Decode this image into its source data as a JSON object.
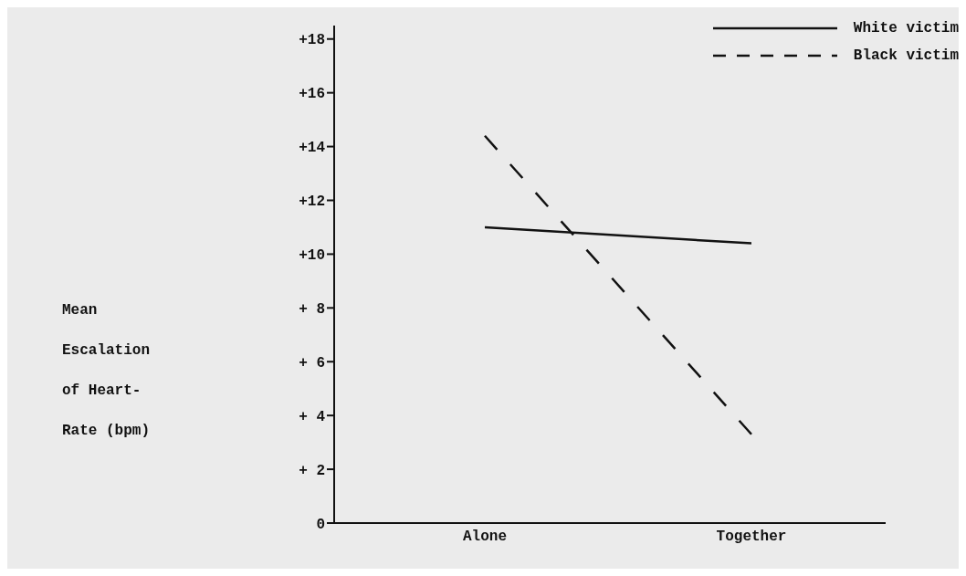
{
  "chart_data": {
    "type": "line",
    "ylabel": "Mean\nEscalation\nof Heart-\nRate (bpm)",
    "categories": [
      "Alone",
      "Together"
    ],
    "series": [
      {
        "name": "White victim",
        "color": "#111111",
        "values": [
          11.0,
          10.4
        ],
        "line_style": "solid"
      },
      {
        "name": "Black victim",
        "color": "#111111",
        "values": [
          14.4,
          3.3
        ],
        "line_style": "dashed"
      }
    ],
    "ylim": [
      0,
      18.5
    ],
    "yticks": [
      0,
      {
        "value": 2,
        "label": "+ 2"
      },
      {
        "value": 4,
        "label": "+ 4"
      },
      {
        "value": 6,
        "label": "+ 6"
      },
      {
        "value": 8,
        "label": "+ 8"
      },
      {
        "value": 10,
        "label": "+10"
      },
      {
        "value": 12,
        "label": "+12"
      },
      {
        "value": 14,
        "label": "+14"
      },
      {
        "value": 16,
        "label": "+16"
      },
      {
        "value": 18,
        "label": "+18"
      }
    ],
    "grid": false,
    "legend": "top right",
    "marker": "none"
  }
}
